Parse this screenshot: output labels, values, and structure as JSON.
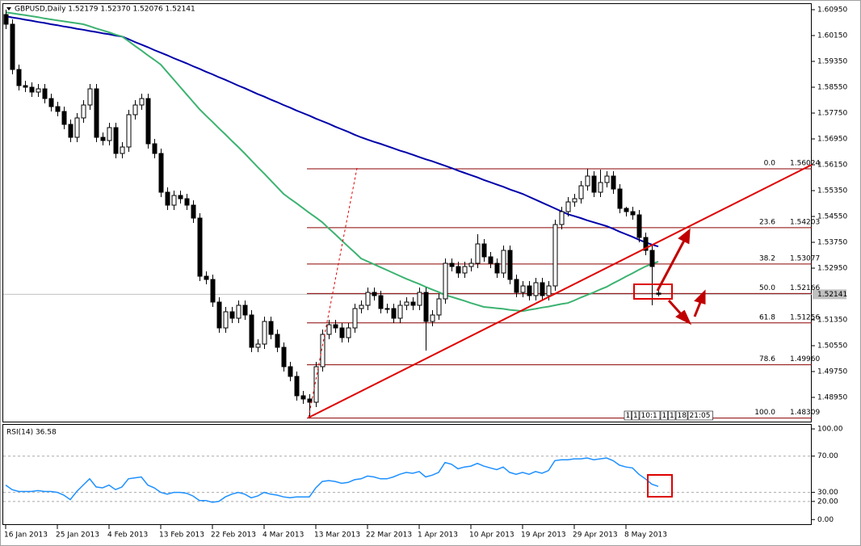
{
  "chart_data": [
    {
      "type": "candlestick",
      "title": "GBPUSD,Daily 1.52179 1.52370 1.52076 1.52141",
      "categories": [
        "16 Jan 2013",
        null,
        null,
        null,
        null,
        null,
        null,
        null,
        "25 Jan 2013",
        null,
        null,
        null,
        null,
        null,
        null,
        null,
        "4 Feb 2013",
        null,
        null,
        null,
        null,
        null,
        null,
        null,
        "13 Feb 2013",
        null,
        null,
        null,
        null,
        null,
        null,
        null,
        "22 Feb 2013",
        null,
        null,
        null,
        null,
        null,
        null,
        null,
        "4 Mar 2013",
        null,
        null,
        null,
        null,
        null,
        null,
        null,
        "13 Mar 2013",
        null,
        null,
        null,
        null,
        null,
        null,
        null,
        "22 Mar 2013",
        null,
        null,
        null,
        null,
        null,
        null,
        null,
        "1 Apr 2013",
        null,
        null,
        null,
        null,
        null,
        null,
        null,
        "10 Apr 2013",
        null,
        null,
        null,
        null,
        null,
        null,
        null,
        "19 Apr 2013",
        null,
        null,
        null,
        null,
        null,
        null,
        null,
        "29 Apr 2013",
        null,
        null,
        null,
        null,
        null,
        null,
        null,
        "8 May 2013",
        null,
        null,
        null,
        null,
        null
      ],
      "open": [
        1.608,
        1.605,
        1.591,
        1.586,
        1.5855,
        1.584,
        1.585,
        1.582,
        1.5795,
        1.578,
        1.574,
        1.57,
        1.576,
        1.58,
        1.585,
        1.57,
        1.569,
        1.573,
        1.565,
        1.567,
        1.577,
        1.58,
        1.582,
        1.568,
        1.565,
        1.553,
        1.549,
        1.552,
        1.551,
        1.549,
        1.545,
        1.527,
        1.526,
        1.519,
        1.511,
        1.516,
        1.514,
        1.518,
        1.515,
        1.505,
        1.506,
        1.513,
        1.509,
        1.505,
        1.499,
        1.496,
        1.49,
        1.489,
        1.488,
        1.499,
        1.509,
        1.512,
        1.511,
        1.508,
        1.511,
        1.517,
        1.518,
        1.522,
        1.521,
        1.517,
        1.517,
        1.514,
        1.518,
        1.519,
        1.518,
        1.522,
        1.513,
        1.515,
        1.52,
        1.531,
        1.53,
        1.528,
        1.53,
        1.531,
        1.537,
        1.533,
        1.531,
        1.528,
        1.535,
        1.526,
        1.522,
        1.524,
        1.521,
        1.525,
        1.521,
        1.524,
        1.543,
        1.547,
        1.55,
        1.551,
        1.555,
        1.558,
        1.553,
        1.556,
        1.558,
        1.554,
        1.548,
        1.547,
        1.546,
        1.539,
        1.535,
        1.52179
      ],
      "high": [
        1.6095,
        1.6065,
        1.5925,
        1.5875,
        1.587,
        1.5865,
        1.5865,
        1.5835,
        1.581,
        1.5795,
        1.5755,
        1.5775,
        1.5815,
        1.5865,
        1.5865,
        1.5715,
        1.5745,
        1.5745,
        1.5685,
        1.5785,
        1.5815,
        1.5835,
        1.5835,
        1.5695,
        1.5665,
        1.5545,
        1.5535,
        1.5535,
        1.5525,
        1.5505,
        1.5465,
        1.5285,
        1.5275,
        1.5205,
        1.5175,
        1.5175,
        1.5195,
        1.5195,
        1.5165,
        1.5075,
        1.5145,
        1.5145,
        1.5105,
        1.5065,
        1.5005,
        1.4975,
        1.4915,
        1.4905,
        1.5005,
        1.5105,
        1.5135,
        1.5135,
        1.5125,
        1.5125,
        1.5185,
        1.5195,
        1.5235,
        1.5235,
        1.5225,
        1.5185,
        1.5185,
        1.5195,
        1.5205,
        1.5205,
        1.5235,
        1.5235,
        1.5165,
        1.5215,
        1.5325,
        1.5325,
        1.5315,
        1.5315,
        1.5325,
        1.54,
        1.5385,
        1.5345,
        1.5325,
        1.5365,
        1.5365,
        1.5275,
        1.5255,
        1.5255,
        1.5265,
        1.5265,
        1.5255,
        1.5445,
        1.5485,
        1.5515,
        1.5525,
        1.5565,
        1.56024,
        1.5595,
        1.56,
        1.5595,
        1.5595,
        1.5555,
        1.5485,
        1.5485,
        1.5475,
        1.5405,
        1.5365,
        1.5237
      ],
      "low": [
        1.6035,
        1.5895,
        1.5845,
        1.584,
        1.5825,
        1.5825,
        1.5805,
        1.578,
        1.5765,
        1.5725,
        1.5685,
        1.5685,
        1.5745,
        1.5785,
        1.5685,
        1.5675,
        1.5675,
        1.5635,
        1.5635,
        1.5655,
        1.5755,
        1.5785,
        1.5665,
        1.5635,
        1.5515,
        1.5475,
        1.5475,
        1.5495,
        1.5475,
        1.5435,
        1.5255,
        1.5245,
        1.5175,
        1.5095,
        1.5095,
        1.5125,
        1.5125,
        1.5135,
        1.5035,
        1.5035,
        1.5045,
        1.5075,
        1.5035,
        1.4975,
        1.4945,
        1.4885,
        1.4875,
        1.48309,
        1.4865,
        1.4975,
        1.5075,
        1.5095,
        1.5065,
        1.5065,
        1.5095,
        1.5155,
        1.5165,
        1.5195,
        1.5155,
        1.5155,
        1.5125,
        1.5125,
        1.5165,
        1.5165,
        1.5165,
        1.504,
        1.5115,
        1.5135,
        1.5185,
        1.5285,
        1.5265,
        1.5265,
        1.5285,
        1.5295,
        1.5315,
        1.5295,
        1.5265,
        1.5265,
        1.5245,
        1.5205,
        1.5205,
        1.5195,
        1.5195,
        1.5195,
        1.5195,
        1.5225,
        1.5415,
        1.5455,
        1.5485,
        1.5495,
        1.5535,
        1.5515,
        1.5515,
        1.5545,
        1.5525,
        1.5465,
        1.5455,
        1.5445,
        1.5375,
        1.5335,
        1.518,
        1.52076
      ],
      "close": [
        1.605,
        1.591,
        1.586,
        1.5855,
        1.584,
        1.585,
        1.582,
        1.5795,
        1.578,
        1.574,
        1.57,
        1.576,
        1.58,
        1.585,
        1.57,
        1.569,
        1.573,
        1.565,
        1.567,
        1.577,
        1.58,
        1.582,
        1.568,
        1.565,
        1.553,
        1.549,
        1.552,
        1.551,
        1.549,
        1.545,
        1.527,
        1.526,
        1.519,
        1.511,
        1.516,
        1.514,
        1.518,
        1.515,
        1.505,
        1.506,
        1.513,
        1.509,
        1.505,
        1.499,
        1.496,
        1.49,
        1.489,
        1.488,
        1.499,
        1.509,
        1.512,
        1.511,
        1.508,
        1.511,
        1.517,
        1.518,
        1.522,
        1.521,
        1.517,
        1.517,
        1.514,
        1.518,
        1.519,
        1.518,
        1.522,
        1.513,
        1.515,
        1.52,
        1.531,
        1.53,
        1.528,
        1.53,
        1.531,
        1.537,
        1.533,
        1.531,
        1.528,
        1.535,
        1.526,
        1.522,
        1.524,
        1.521,
        1.525,
        1.521,
        1.524,
        1.543,
        1.547,
        1.55,
        1.551,
        1.555,
        1.558,
        1.553,
        1.556,
        1.558,
        1.554,
        1.548,
        1.547,
        1.546,
        1.539,
        1.535,
        1.53,
        1.52141
      ],
      "series": [
        {
          "color": "#0000aa",
          "values": [
            1.6075,
            1.6071,
            1.6068,
            1.6064,
            1.6061,
            1.6057,
            1.6054,
            1.605,
            1.6047,
            1.6043,
            1.604,
            1.6036,
            1.6033,
            1.6029,
            1.6026,
            1.6022,
            1.6019,
            1.6015,
            1.6012,
            1.6004,
            1.5995,
            1.5987,
            1.5979,
            1.597,
            1.5962,
            1.5954,
            1.5945,
            1.5937,
            1.5929,
            1.592,
            1.5912,
            1.5903,
            1.5895,
            1.5886,
            1.5878,
            1.5869,
            1.586,
            1.5852,
            1.5843,
            1.5834,
            1.5826,
            1.5817,
            1.5809,
            1.58,
            1.5792,
            1.5783,
            1.5775,
            1.5767,
            1.5758,
            1.575,
            1.5742,
            1.5733,
            1.5725,
            1.5717,
            1.5708,
            1.57,
            1.5693,
            1.5686,
            1.568,
            1.5673,
            1.5666,
            1.5659,
            1.5653,
            1.5646,
            1.5639,
            1.5632,
            1.5626,
            1.5619,
            1.5612,
            1.5605,
            1.5597,
            1.559,
            1.5583,
            1.5576,
            1.5568,
            1.5561,
            1.5554,
            1.5547,
            1.5539,
            1.5532,
            1.5525,
            1.5516,
            1.5507,
            1.5498,
            1.5489,
            1.548,
            1.5471,
            1.5462,
            1.5456,
            1.545,
            1.5443,
            1.5437,
            1.5431,
            1.5425,
            1.5417,
            1.5408,
            1.54,
            1.5392,
            1.5383,
            1.5375,
            1.5368,
            1.5362
          ]
        },
        {
          "color": "#3cb371",
          "values": [
            1.6087,
            1.6084,
            1.6081,
            1.6078,
            1.6075,
            1.6072,
            1.6068,
            1.6065,
            1.6062,
            1.6059,
            1.6056,
            1.6053,
            1.605,
            1.6044,
            1.6037,
            1.6031,
            1.6025,
            1.6018,
            1.6012,
            1.5998,
            1.5983,
            1.5969,
            1.5954,
            1.594,
            1.5925,
            1.5902,
            1.5879,
            1.5856,
            1.5833,
            1.581,
            1.5787,
            1.5767,
            1.5748,
            1.5728,
            1.5709,
            1.5689,
            1.567,
            1.565,
            1.5629,
            1.5608,
            1.5588,
            1.5567,
            1.5546,
            1.5525,
            1.551,
            1.5496,
            1.5481,
            1.5466,
            1.5452,
            1.5437,
            1.5418,
            1.54,
            1.5381,
            1.5362,
            1.5344,
            1.5325,
            1.5316,
            1.5307,
            1.5298,
            1.5289,
            1.528,
            1.5271,
            1.5262,
            1.5254,
            1.5246,
            1.5237,
            1.5229,
            1.5221,
            1.5212,
            1.5206,
            1.52,
            1.5194,
            1.5187,
            1.5181,
            1.5175,
            1.5173,
            1.5171,
            1.5169,
            1.5166,
            1.5164,
            1.5162,
            1.5166,
            1.5169,
            1.5173,
            1.5176,
            1.518,
            1.5184,
            1.5187,
            1.5195,
            1.5204,
            1.5212,
            1.522,
            1.5229,
            1.5237,
            1.5248,
            1.5258,
            1.5269,
            1.5279,
            1.529,
            1.53,
            1.5308,
            1.5315
          ]
        }
      ],
      "ylim": [
        1.482,
        1.61125
      ],
      "yticks": [
        {
          "value": 1.6095,
          "label": "1.60950"
        },
        {
          "value": 1.6015,
          "label": "1.60150"
        },
        {
          "value": 1.5935,
          "label": "1.59350"
        },
        {
          "value": 1.5855,
          "label": "1.58550"
        },
        {
          "value": 1.5775,
          "label": "1.57750"
        },
        {
          "value": 1.5695,
          "label": "1.56950"
        },
        {
          "value": 1.5615,
          "label": "1.56150"
        },
        {
          "value": 1.5535,
          "label": "1.55350"
        },
        {
          "value": 1.5455,
          "label": "1.54550"
        },
        {
          "value": 1.5375,
          "label": "1.53750"
        },
        {
          "value": 1.5295,
          "label": "1.52950"
        },
        {
          "value": 1.5135,
          "label": "1.51350"
        },
        {
          "value": 1.5055,
          "label": "1.50550"
        },
        {
          "value": 1.4975,
          "label": "1.49750"
        },
        {
          "value": 1.4895,
          "label": "1.48950"
        }
      ],
      "current_price": 1.52141,
      "fibonacci": [
        {
          "level": "0.0",
          "price": 1.56024
        },
        {
          "level": "23.6",
          "price": 1.54203
        },
        {
          "level": "38.2",
          "price": 1.53077
        },
        {
          "level": "50.0",
          "price": 1.52166
        },
        {
          "level": "61.8",
          "price": 1.51256
        },
        {
          "level": "78.6",
          "price": {
            "value": 1.4996,
            "label": "1.49960"
          }
        },
        {
          "level": "100.0",
          "price": 1.48309
        }
      ],
      "timer_labels": [
        "1",
        "1",
        "10:1",
        "1",
        "1",
        "18",
        "21:05"
      ]
    },
    {
      "type": "line",
      "title": "RSI(14) 36.58",
      "series": [
        {
          "color": "#1e90ff",
          "values": [
            38,
            33,
            31,
            31,
            31,
            32,
            31,
            31,
            30,
            27,
            22,
            31,
            38,
            45,
            36,
            35,
            38,
            33,
            36,
            45,
            46,
            47,
            38,
            35,
            30,
            28,
            30,
            30,
            29,
            26,
            21,
            21,
            19,
            20,
            25,
            28,
            30,
            28,
            24,
            26,
            30,
            28,
            27,
            25,
            24,
            25,
            25,
            25,
            35,
            42,
            43,
            42,
            40,
            41,
            44,
            45,
            48,
            47,
            45,
            45,
            47,
            50,
            52,
            51,
            53,
            47,
            49,
            52,
            63,
            61,
            56,
            58,
            59,
            62,
            59,
            57,
            55,
            58,
            52,
            50,
            52,
            50,
            53,
            51,
            54,
            65,
            66,
            66,
            67,
            67,
            68,
            66,
            67,
            68,
            65,
            60,
            58,
            57,
            50,
            45,
            39,
            36.58
          ]
        }
      ],
      "ylim": [
        -6,
        104.5
      ],
      "yticks": [
        {
          "value": 100,
          "label": "100.00"
        },
        {
          "value": 70,
          "label": "70.00"
        },
        {
          "value": 30,
          "label": "30.00"
        },
        {
          "value": 20,
          "label": "20.00"
        },
        {
          "value": 0,
          "label": "0.00"
        }
      ],
      "grid": true
    }
  ]
}
